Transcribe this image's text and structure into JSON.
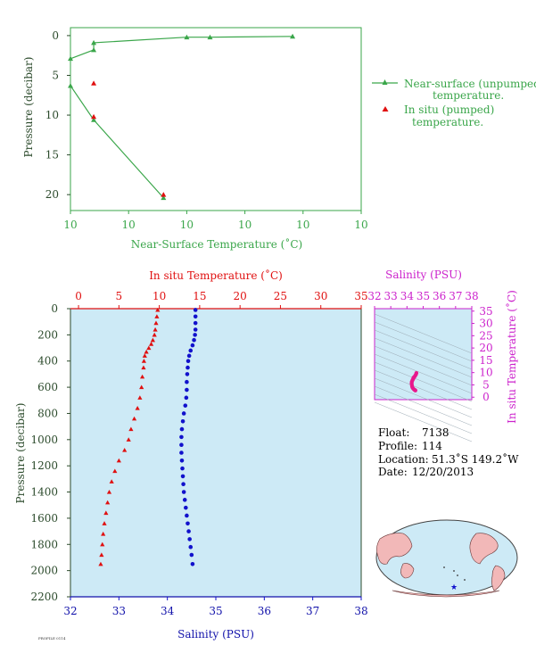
{
  "colors": {
    "near_surface": "#3aa64a",
    "in_situ": "#e01010",
    "salinity": "#1111cc",
    "profile_bg": "#cdeaf6",
    "ts_curve": "#e8188c",
    "axis_dark": "#2b4a2b"
  },
  "chart_data": [
    {
      "type": "line",
      "ylabel": "Pressure (decibar)",
      "xlabel": "Near-Surface Temperature (˚C)",
      "x_ticks": [
        "10",
        "10",
        "10",
        "10",
        "10",
        "10"
      ],
      "y_ticks": [
        "0",
        "5",
        "10",
        "15",
        "20"
      ],
      "ylim": [
        22,
        -1
      ],
      "xlim": [
        10.0,
        10.5
      ],
      "legend": {
        "placement": "right",
        "near_surface_label": "Near-surface (unpumped)",
        "near_surface_label2": "temperature.",
        "in_situ_label": "In situ (pumped)",
        "in_situ_label2": "temperature."
      },
      "series": [
        {
          "key": "near_surface",
          "points": [
            [
              10.382,
              0.1
            ],
            [
              10.24,
              0.2
            ],
            [
              10.2,
              0.2
            ],
            [
              10.04,
              0.9
            ],
            [
              10.04,
              1.8
            ],
            [
              10.0,
              2.9
            ],
            [
              10.0,
              6.3
            ],
            [
              10.04,
              10.6
            ],
            [
              10.16,
              20.4
            ]
          ]
        },
        {
          "key": "in_situ",
          "points": [
            [
              10.04,
              6.0
            ],
            [
              10.04,
              10.2
            ],
            [
              10.16,
              20.0
            ]
          ]
        }
      ]
    },
    {
      "type": "scatter",
      "ylabel": "Pressure (decibar)",
      "x_top_label": "In situ Temperature (˚C)",
      "x_bottom_label": "Salinity (PSU)",
      "temp_ticks": [
        "0",
        "5",
        "10",
        "15",
        "20",
        "25",
        "30",
        "35"
      ],
      "sal_ticks": [
        "32",
        "33",
        "34",
        "35",
        "36",
        "37",
        "38"
      ],
      "p_ticks": [
        "0",
        "200",
        "400",
        "600",
        "800",
        "1000",
        "1200",
        "1400",
        "1600",
        "1800",
        "2000",
        "2200"
      ],
      "temp_lim": [
        -1,
        35
      ],
      "sal_lim": [
        32,
        38
      ],
      "p_lim": [
        0,
        2200
      ],
      "temperature_profile": [
        [
          9.8,
          10
        ],
        [
          9.7,
          60
        ],
        [
          9.6,
          110
        ],
        [
          9.5,
          160
        ],
        [
          9.4,
          200
        ],
        [
          9.2,
          240
        ],
        [
          9.0,
          270
        ],
        [
          8.7,
          300
        ],
        [
          8.4,
          330
        ],
        [
          8.2,
          360
        ],
        [
          8.1,
          400
        ],
        [
          8.05,
          450
        ],
        [
          7.9,
          520
        ],
        [
          7.8,
          600
        ],
        [
          7.6,
          680
        ],
        [
          7.3,
          760
        ],
        [
          6.9,
          840
        ],
        [
          6.5,
          920
        ],
        [
          6.2,
          1000
        ],
        [
          5.7,
          1080
        ],
        [
          5.0,
          1160
        ],
        [
          4.5,
          1240
        ],
        [
          4.1,
          1320
        ],
        [
          3.8,
          1400
        ],
        [
          3.6,
          1480
        ],
        [
          3.4,
          1560
        ],
        [
          3.2,
          1640
        ],
        [
          3.05,
          1720
        ],
        [
          2.95,
          1800
        ],
        [
          2.85,
          1880
        ],
        [
          2.75,
          1950
        ]
      ],
      "salinity_profile": [
        [
          34.58,
          10
        ],
        [
          34.58,
          60
        ],
        [
          34.58,
          110
        ],
        [
          34.58,
          160
        ],
        [
          34.57,
          200
        ],
        [
          34.55,
          240
        ],
        [
          34.52,
          280
        ],
        [
          34.48,
          320
        ],
        [
          34.45,
          360
        ],
        [
          34.43,
          400
        ],
        [
          34.42,
          450
        ],
        [
          34.41,
          500
        ],
        [
          34.4,
          560
        ],
        [
          34.4,
          620
        ],
        [
          34.39,
          680
        ],
        [
          34.37,
          740
        ],
        [
          34.34,
          800
        ],
        [
          34.32,
          860
        ],
        [
          34.3,
          920
        ],
        [
          34.29,
          980
        ],
        [
          34.29,
          1040
        ],
        [
          34.29,
          1100
        ],
        [
          34.3,
          1160
        ],
        [
          34.31,
          1220
        ],
        [
          34.32,
          1280
        ],
        [
          34.33,
          1340
        ],
        [
          34.34,
          1400
        ],
        [
          34.36,
          1460
        ],
        [
          34.38,
          1520
        ],
        [
          34.4,
          1580
        ],
        [
          34.42,
          1640
        ],
        [
          34.44,
          1700
        ],
        [
          34.46,
          1760
        ],
        [
          34.48,
          1820
        ],
        [
          34.5,
          1880
        ],
        [
          34.52,
          1950
        ]
      ]
    },
    {
      "type": "scatter",
      "x_label": "Salinity (PSU)",
      "y_label": "In situ Temperature (˚C)",
      "sal_ticks": [
        "32",
        "33",
        "34",
        "35",
        "36",
        "37",
        "38"
      ],
      "temp_ticks": [
        "0",
        "5",
        "10",
        "15",
        "20",
        "25",
        "30",
        "35"
      ],
      "sal_lim": [
        32,
        38
      ],
      "temp_lim": [
        -1,
        36
      ],
      "ts_points": [
        [
          34.58,
          9.8
        ],
        [
          34.55,
          9.2
        ],
        [
          34.5,
          8.7
        ],
        [
          34.45,
          8.2
        ],
        [
          34.42,
          8.05
        ],
        [
          34.4,
          7.8
        ],
        [
          34.38,
          7.4
        ],
        [
          34.34,
          6.9
        ],
        [
          34.3,
          6.3
        ],
        [
          34.29,
          5.7
        ],
        [
          34.3,
          5.0
        ],
        [
          34.32,
          4.3
        ],
        [
          34.35,
          3.8
        ],
        [
          34.4,
          3.4
        ],
        [
          34.45,
          3.05
        ],
        [
          34.5,
          2.85
        ],
        [
          34.52,
          2.75
        ]
      ]
    }
  ],
  "info": {
    "float_label": "Float:",
    "float_value": "7138",
    "profile_label": "Profile:",
    "profile_value": "114",
    "location_label": "Location:",
    "location_value": "51.3˚S  149.2˚W",
    "date_label": "Date:",
    "date_value": "12/20/2013"
  },
  "footer_text": "PROFILE 0114"
}
